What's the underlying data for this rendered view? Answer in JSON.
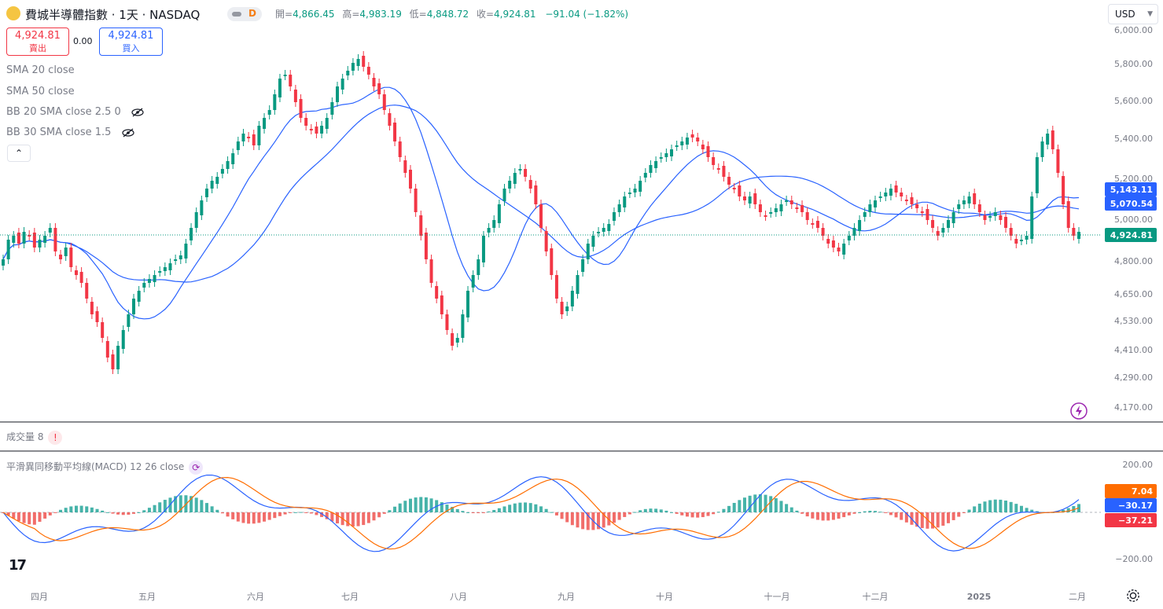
{
  "header": {
    "title": "費城半導體指數 · 1天 · NASDAQ",
    "interval_badge": "D",
    "ohlc": {
      "open_label": "開=",
      "open": "4,866.45",
      "high_label": "高=",
      "high": "4,983.19",
      "low_label": "低=",
      "low": "4,848.72",
      "close_label": "收=",
      "close": "4,924.81",
      "change": "−91.04 (−1.82%)"
    }
  },
  "trade": {
    "sell_price": "4,924.81",
    "sell_label": "賣出",
    "spread": "0.00",
    "buy_price": "4,924.81",
    "buy_label": "買入"
  },
  "indicators": [
    "SMA 20 close",
    "SMA 50 close",
    "BB 20 SMA close 2.5 0",
    "BB 30 SMA close 1.5"
  ],
  "collapse_glyph": "⌃",
  "currency": "USD",
  "price_axis": [
    "6,000.00",
    "5,800.00",
    "5,600.00",
    "5,400.00",
    "5,200.00",
    "5,000.00",
    "4,800.00",
    "4,650.00",
    "4,530.00",
    "4,410.00",
    "4,290.00",
    "4,170.00"
  ],
  "price_tags": {
    "sma20": "5,143.11",
    "sma50": "5,070.54",
    "last": "4,924.81"
  },
  "volume_pane": {
    "title": "成交量 8",
    "warning": "!"
  },
  "macd_pane": {
    "title": "平滑異同移動平均線(MACD) 12 26 close",
    "axis": [
      "200.00",
      "−200.00"
    ],
    "tags": {
      "signal": "7.04",
      "macd": "−30.17",
      "hist": "−37.21"
    }
  },
  "time_axis": [
    "四月",
    "五月",
    "六月",
    "七月",
    "八月",
    "九月",
    "十月",
    "十一月",
    "十二月",
    "2025",
    "二月"
  ],
  "logo": "17",
  "colors": {
    "up": "#089981",
    "down": "#f23645",
    "sma": "#2962ff",
    "macd_line": "#2962ff",
    "signal_line": "#ff6d00",
    "last_tag": "#089981"
  }
}
